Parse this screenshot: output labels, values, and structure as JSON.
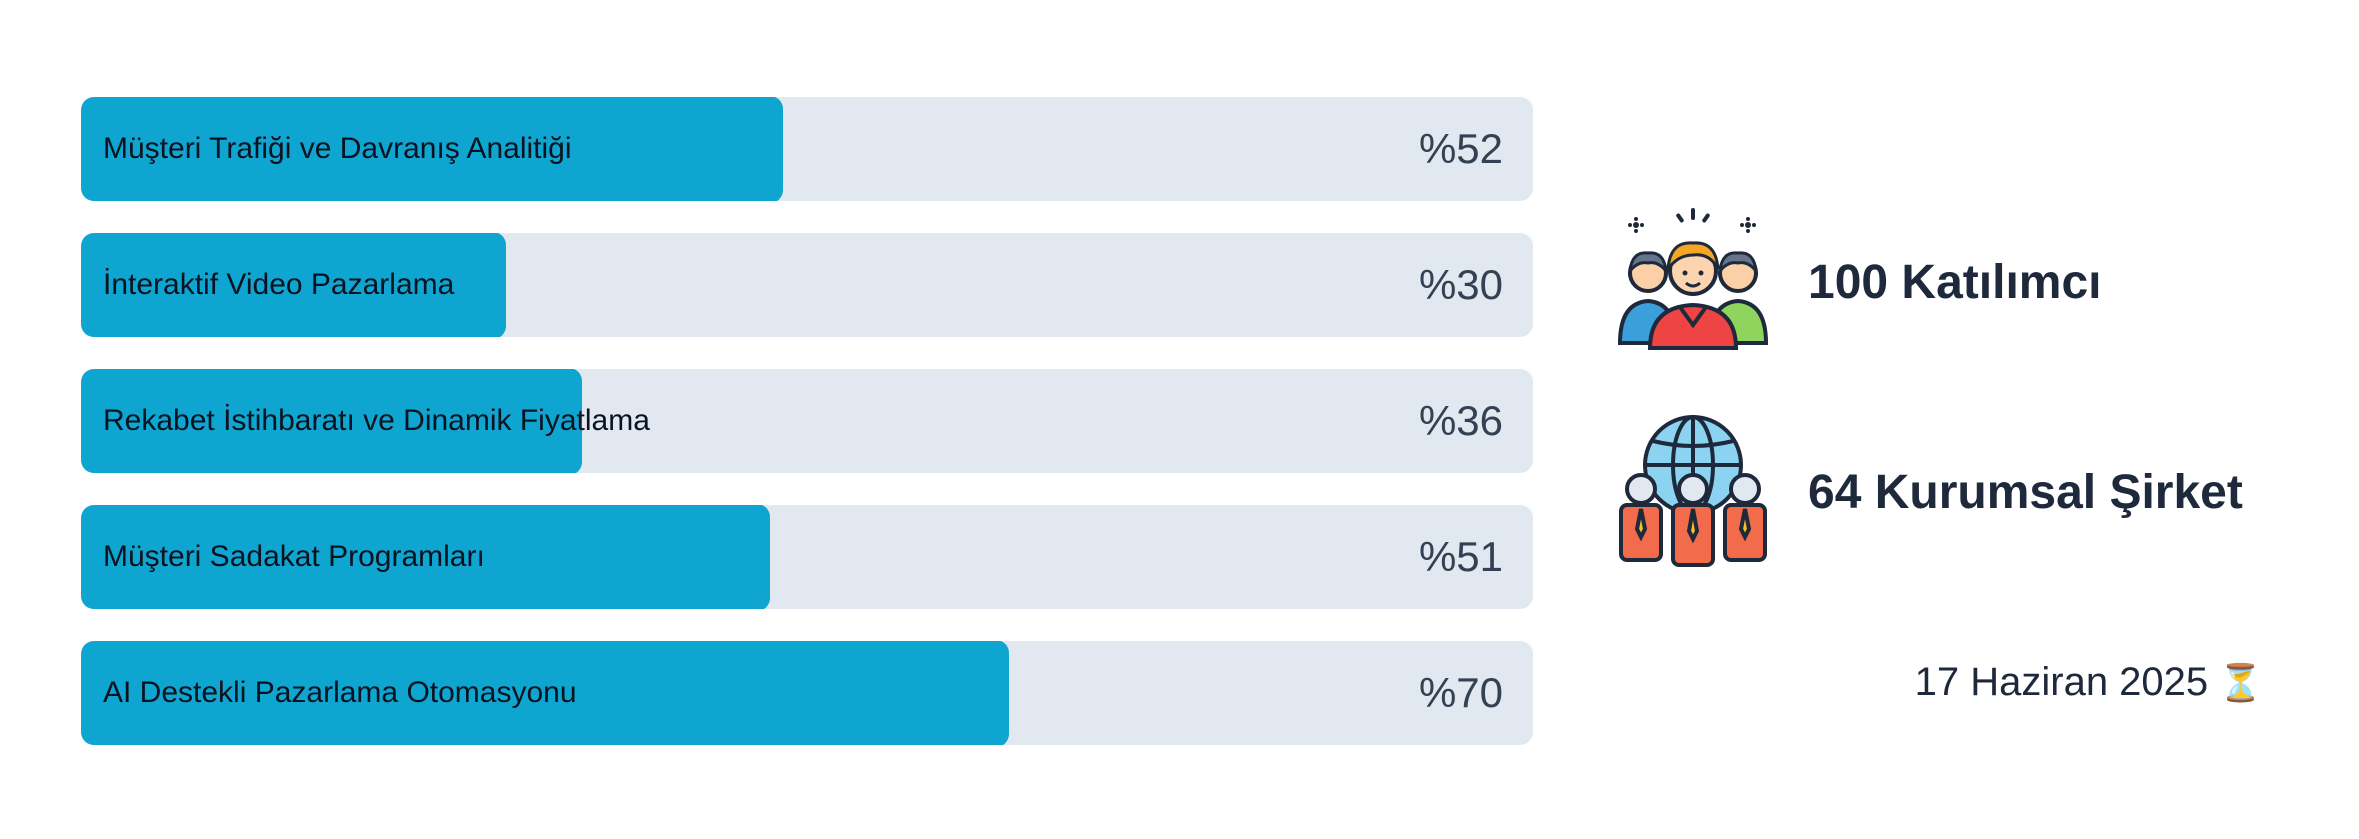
{
  "chart_data": {
    "type": "bar",
    "orientation": "horizontal",
    "categories": [
      "Müşteri Trafiği ve Davranış Analitiği",
      "İnteraktif Video Pazarlama",
      "Rekabet İstihbaratı ve Dinamik Fiyatlama",
      "Müşteri Sadakat Programları",
      "AI Destekli Pazarlama Otomasyonu"
    ],
    "values": [
      52,
      30,
      36,
      51,
      70
    ],
    "value_labels": [
      "%52",
      "%30",
      "%36",
      "%51",
      "%70"
    ],
    "xlim": [
      0,
      100
    ],
    "colors": {
      "fill": "#0ea5d0",
      "track": "#e2e8f0"
    }
  },
  "stats": [
    {
      "text": "100 Katılımcı",
      "icon": "participants-group-icon"
    },
    {
      "text": "64 Kurumsal Şirket",
      "icon": "global-companies-icon"
    }
  ],
  "date": {
    "text": "17 Haziran 2025",
    "icon": "hourglass-icon",
    "glyph": "⏳"
  }
}
